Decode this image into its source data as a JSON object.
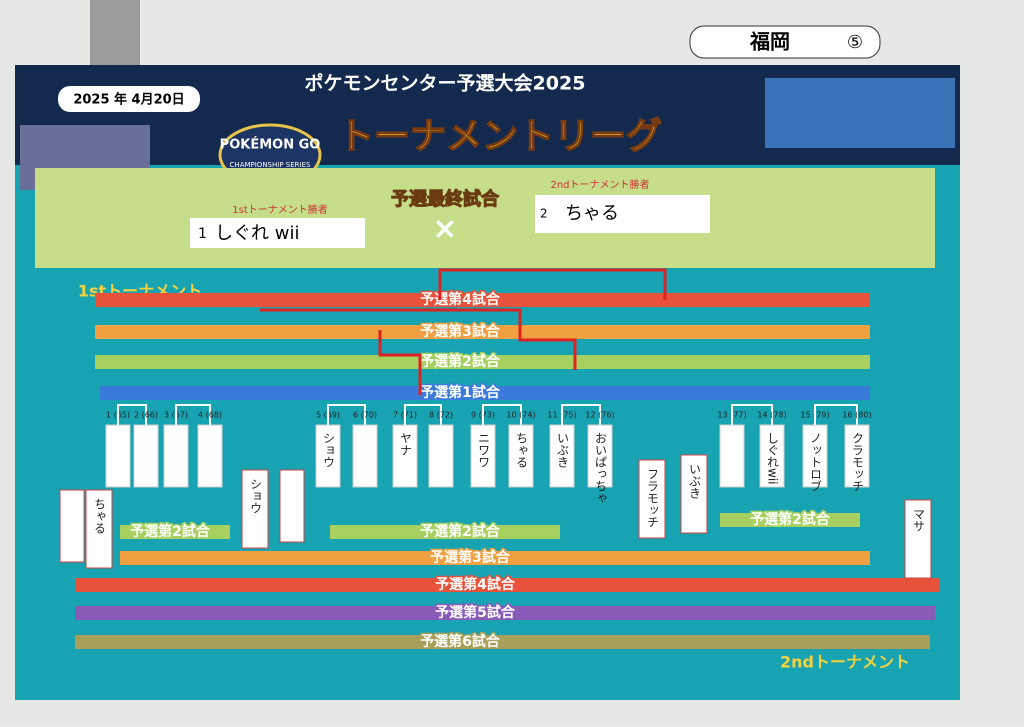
{
  "header": {
    "event": "ポケモンセンター予選大会2025",
    "date": "2025 年 4月20日",
    "venue": "福岡",
    "venue_number": "⑤",
    "title": "トーナメントリーグ",
    "logo": "POKÉMON GO",
    "logo_sub": "CHAMPIONSHIP SERIES"
  },
  "final": {
    "title": "予選最終試合",
    "vs": "×",
    "left_label": "1stトーナメント勝者",
    "left_seed": "1",
    "left_name": "しぐれ wii",
    "right_label": "2ndトーナメント勝者",
    "right_seed": "2",
    "right_name": "ちゃる"
  },
  "first_tournament": {
    "title": "1stトーナメント",
    "rounds": [
      "予選第4試合",
      "予選第3試合",
      "予選第2試合",
      "予選第1試合"
    ],
    "slots": [
      {
        "label": "1 (65)"
      },
      {
        "label": "2 (66)"
      },
      {
        "label": "3 (67)"
      },
      {
        "label": "4 (68)"
      },
      {
        "label": "5 (69)",
        "name": "ショウ"
      },
      {
        "label": "6 (70)"
      },
      {
        "label": "7 (71)",
        "name": "ヤナ"
      },
      {
        "label": "8 (72)"
      },
      {
        "label": "9 (73)",
        "name": "ニワワ"
      },
      {
        "label": "10 (74)",
        "name": "ちゃる"
      },
      {
        "label": "11 (75)",
        "name": "いぶき"
      },
      {
        "label": "12 (76)",
        "name": "おいぱっちゃ"
      },
      {
        "label": "13 (77)"
      },
      {
        "label": "14 (78)",
        "name": "しぐれwii"
      },
      {
        "label": "15 (79)",
        "name": "ノットロブ"
      },
      {
        "label": "16 (80)",
        "name": "クラモッチ"
      }
    ]
  },
  "second_tournament": {
    "title": "2ndトーナメント",
    "rounds": [
      "予選第2試合",
      "予選第2試合",
      "予選第2試合",
      "予選第3試合",
      "予選第4試合",
      "予選第5試合",
      "予選第6試合"
    ],
    "entries": [
      "ちゃる",
      "ショウ",
      "フラモッチ",
      "いぶき",
      "マサ"
    ]
  }
}
